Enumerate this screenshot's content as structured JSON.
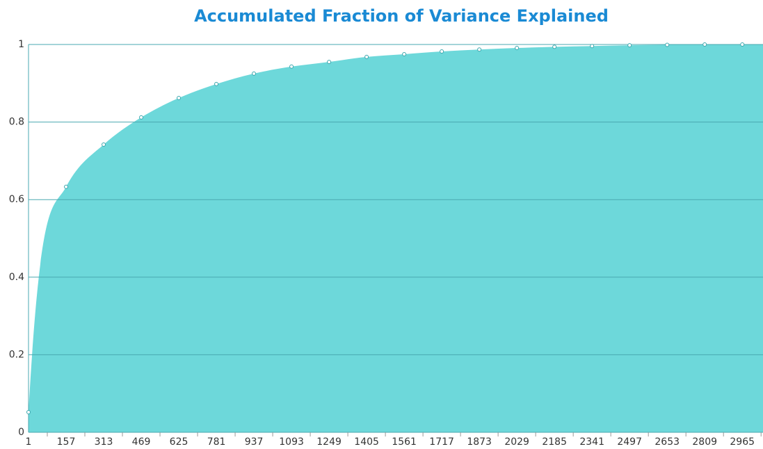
{
  "chart_data": {
    "type": "area",
    "title": "Accumulated Fraction of Variance Explained",
    "x": [
      1,
      157,
      313,
      469,
      625,
      781,
      937,
      1093,
      1249,
      1405,
      1561,
      1717,
      1873,
      2029,
      2185,
      2341,
      2497,
      2653,
      2809,
      2965
    ],
    "values": [
      0.052,
      0.633,
      0.742,
      0.812,
      0.862,
      0.898,
      0.925,
      0.943,
      0.955,
      0.968,
      0.975,
      0.982,
      0.987,
      0.991,
      0.994,
      0.996,
      0.998,
      0.999,
      1.0,
      1.0
    ],
    "color": "#6dd8da",
    "xlim": [
      1,
      3051
    ],
    "xticks": [
      1,
      157,
      313,
      469,
      625,
      781,
      937,
      1093,
      1249,
      1405,
      1561,
      1717,
      1873,
      2029,
      2185,
      2341,
      2497,
      2653,
      2809,
      2965
    ],
    "ylim": [
      0,
      1
    ],
    "yticks": [
      0,
      0.2,
      0.4,
      0.6,
      0.8,
      1
    ],
    "grid": true
  }
}
